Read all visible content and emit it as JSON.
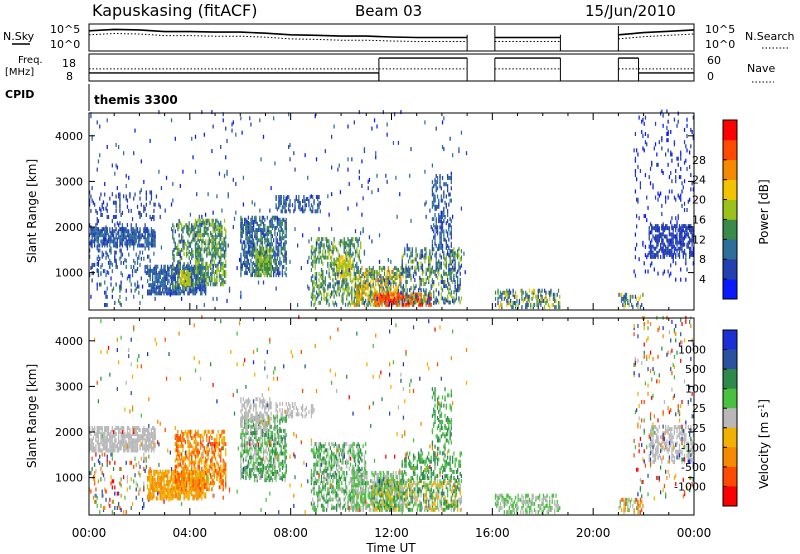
{
  "header": {
    "station": "Kapuskasing (fitACF)",
    "beam": "Beam 03",
    "date": "15/Jun/2010"
  },
  "chart_data": [
    {
      "type": "line",
      "name": "noise-panel",
      "left_label": "N.Sky",
      "right_label": "N.Search",
      "y_ticks_left": [
        "10^5",
        "10^0"
      ],
      "y_ticks_right": [
        "10^5",
        "10^0"
      ],
      "segments_hours": [
        [
          0,
          15.0
        ],
        [
          16.1,
          18.7
        ],
        [
          21.0,
          24.0
        ]
      ],
      "nsky_levels": [
        [
          0,
          0.75
        ],
        [
          1,
          0.8
        ],
        [
          2,
          0.78
        ],
        [
          3,
          0.72
        ],
        [
          4,
          0.72
        ],
        [
          5,
          0.7
        ],
        [
          6,
          0.7
        ],
        [
          7,
          0.66
        ],
        [
          8,
          0.6
        ],
        [
          9,
          0.58
        ],
        [
          10,
          0.55
        ],
        [
          11,
          0.55
        ],
        [
          12,
          0.52
        ],
        [
          13,
          0.5
        ],
        [
          14,
          0.5
        ],
        [
          15,
          0.5
        ],
        [
          16.1,
          0.5
        ],
        [
          17,
          0.5
        ],
        [
          18.7,
          0.5
        ],
        [
          21,
          0.6
        ],
        [
          22,
          0.68
        ],
        [
          23,
          0.73
        ],
        [
          24,
          0.78
        ]
      ]
    },
    {
      "type": "line",
      "name": "frequency-panel",
      "left_label": "Freq.",
      "left_unit": "[MHz]",
      "right_label": "Nave",
      "y_ticks_left": [
        "18",
        "8"
      ],
      "y_ticks_right": [
        "60",
        "0"
      ],
      "freq_steps_hours": [
        [
          0,
          11.5,
          0.3
        ],
        [
          11.5,
          15.0,
          0.85
        ],
        [
          16.1,
          18.7,
          0.85
        ],
        [
          21.0,
          21.8,
          0.85
        ],
        [
          21.8,
          24.0,
          0.3
        ]
      ]
    },
    {
      "type": "table",
      "name": "cpid-panel",
      "label": "CPID",
      "program": "themis 3300"
    },
    {
      "type": "heatmap",
      "name": "power",
      "ylabel": "Slant Range [km]",
      "y_ticks": [
        1000,
        2000,
        3000,
        4000
      ],
      "ylim": [
        180,
        4500
      ],
      "x_ticks": [
        "00:00",
        "04:00",
        "08:00",
        "12:00",
        "16:00",
        "20:00",
        "00:00"
      ],
      "xlim_hours": [
        0,
        24
      ],
      "colorbar_label": "Power [dB]",
      "colorbar_ticks": [
        "4",
        "8",
        "12",
        "16",
        "20",
        "24",
        "28"
      ],
      "colors": [
        "#0a1aff",
        "#233fb0",
        "#2e6e9a",
        "#3a8a4a",
        "#9ac21a",
        "#f2c400",
        "#f58a00",
        "#ff4a00",
        "#ff0000"
      ],
      "regions": [
        {
          "t0": 0.0,
          "t1": 2.6,
          "r0": 1550,
          "r1": 1950,
          "d": 0.6,
          "c": [
            1,
            2
          ]
        },
        {
          "t0": 0.0,
          "t1": 2.8,
          "r0": 1950,
          "r1": 2750,
          "d": 0.08,
          "c": [
            1,
            1
          ]
        },
        {
          "t0": 0.0,
          "t1": 2.4,
          "r0": 900,
          "r1": 1550,
          "d": 0.12,
          "c": [
            1,
            2
          ]
        },
        {
          "t0": 0.3,
          "t1": 2.2,
          "r0": 200,
          "r1": 900,
          "d": 0.08,
          "c": [
            0,
            3
          ]
        },
        {
          "t0": 2.3,
          "t1": 4.6,
          "r0": 500,
          "r1": 1100,
          "d": 0.55,
          "c": [
            1,
            2
          ]
        },
        {
          "t0": 3.3,
          "t1": 4.3,
          "r0": 600,
          "r1": 2050,
          "d": 0.3,
          "c": [
            1,
            4
          ]
        },
        {
          "t0": 4.2,
          "t1": 5.4,
          "r0": 700,
          "r1": 2100,
          "d": 0.45,
          "c": [
            2,
            4
          ]
        },
        {
          "t0": 3.6,
          "t1": 4.0,
          "r0": 700,
          "r1": 1000,
          "d": 0.5,
          "c": [
            4,
            5
          ]
        },
        {
          "t0": 6.0,
          "t1": 7.8,
          "r0": 900,
          "r1": 2200,
          "d": 0.45,
          "c": [
            1,
            3
          ]
        },
        {
          "t0": 6.6,
          "t1": 7.2,
          "r0": 900,
          "r1": 1500,
          "d": 0.6,
          "c": [
            3,
            4
          ]
        },
        {
          "t0": 7.4,
          "t1": 9.2,
          "r0": 2300,
          "r1": 2650,
          "d": 0.3,
          "c": [
            1,
            2
          ]
        },
        {
          "t0": 8.8,
          "t1": 10.8,
          "r0": 250,
          "r1": 1700,
          "d": 0.3,
          "c": [
            2,
            4
          ]
        },
        {
          "t0": 9.8,
          "t1": 10.4,
          "r0": 800,
          "r1": 1300,
          "d": 0.45,
          "c": [
            4,
            5
          ]
        },
        {
          "t0": 10.5,
          "t1": 12.5,
          "r0": 250,
          "r1": 1100,
          "d": 0.45,
          "c": [
            2,
            6
          ]
        },
        {
          "t0": 11.3,
          "t1": 13.6,
          "r0": 250,
          "r1": 500,
          "d": 0.55,
          "c": [
            6,
            8
          ]
        },
        {
          "t0": 12.4,
          "t1": 14.8,
          "r0": 300,
          "r1": 1500,
          "d": 0.3,
          "c": [
            1,
            4
          ]
        },
        {
          "t0": 13.6,
          "t1": 14.4,
          "r0": 1500,
          "r1": 3100,
          "d": 0.25,
          "c": [
            1,
            2
          ]
        },
        {
          "t0": 16.1,
          "t1": 18.7,
          "r0": 200,
          "r1": 600,
          "d": 0.35,
          "c": [
            1,
            5
          ]
        },
        {
          "t0": 21.0,
          "t1": 22.0,
          "r0": 200,
          "r1": 500,
          "d": 0.3,
          "c": [
            1,
            5
          ]
        },
        {
          "t0": 22.2,
          "t1": 24.0,
          "r0": 1300,
          "r1": 2000,
          "d": 0.4,
          "c": [
            1,
            1
          ]
        },
        {
          "t0": 21.6,
          "t1": 24.0,
          "r0": 800,
          "r1": 4500,
          "d": 0.05,
          "c": [
            0,
            1
          ]
        },
        {
          "t0": 0.0,
          "t1": 15.0,
          "r0": 200,
          "r1": 4500,
          "d": 0.012,
          "c": [
            0,
            2
          ]
        }
      ],
      "gaps_hours": [
        [
          15.0,
          16.1
        ],
        [
          18.7,
          21.0
        ]
      ]
    },
    {
      "type": "heatmap",
      "name": "velocity",
      "ylabel": "Slant Range [km]",
      "y_ticks": [
        1000,
        2000,
        3000,
        4000
      ],
      "ylim": [
        180,
        4500
      ],
      "x_ticks": [
        "00:00",
        "04:00",
        "08:00",
        "12:00",
        "16:00",
        "20:00",
        "00:00"
      ],
      "xlim_hours": [
        0,
        24
      ],
      "xlabel": "Time UT",
      "colorbar_label": "Velocity [m s-1]",
      "colorbar_ticks": [
        "1000",
        "500",
        "100",
        "25",
        "-25",
        "-100",
        "-500",
        "-1000"
      ],
      "colors": [
        "#1c2fd6",
        "#2a52a0",
        "#2e8a4a",
        "#48c040",
        "#b8b8b8",
        "#f2b000",
        "#f58a00",
        "#ff4a00",
        "#ff0000"
      ],
      "regions": [
        {
          "t0": 0.0,
          "t1": 2.6,
          "r0": 1550,
          "r1": 2050,
          "d": 0.55,
          "c": [
            4,
            4
          ]
        },
        {
          "t0": 0.0,
          "t1": 2.4,
          "r0": 200,
          "r1": 1500,
          "d": 0.08,
          "c": [
            0,
            8
          ]
        },
        {
          "t0": 2.3,
          "t1": 4.6,
          "r0": 500,
          "r1": 1100,
          "d": 0.6,
          "c": [
            5,
            6
          ]
        },
        {
          "t0": 3.4,
          "t1": 5.4,
          "r0": 700,
          "r1": 2000,
          "d": 0.4,
          "c": [
            5,
            7
          ]
        },
        {
          "t0": 6.0,
          "t1": 7.8,
          "r0": 900,
          "r1": 2300,
          "d": 0.4,
          "c": [
            2,
            4
          ]
        },
        {
          "t0": 6.0,
          "t1": 7.2,
          "r0": 2000,
          "r1": 2700,
          "d": 0.35,
          "c": [
            4,
            4
          ]
        },
        {
          "t0": 7.4,
          "t1": 9.0,
          "r0": 2300,
          "r1": 2600,
          "d": 0.3,
          "c": [
            4,
            4
          ]
        },
        {
          "t0": 8.8,
          "t1": 11.0,
          "r0": 250,
          "r1": 1700,
          "d": 0.3,
          "c": [
            2,
            4
          ]
        },
        {
          "t0": 10.4,
          "t1": 12.5,
          "r0": 250,
          "r1": 1100,
          "d": 0.45,
          "c": [
            3,
            4
          ]
        },
        {
          "t0": 11.2,
          "t1": 14.8,
          "r0": 250,
          "r1": 900,
          "d": 0.45,
          "c": [
            2,
            5
          ]
        },
        {
          "t0": 12.4,
          "t1": 14.8,
          "r0": 900,
          "r1": 1500,
          "d": 0.25,
          "c": [
            2,
            3
          ]
        },
        {
          "t0": 13.6,
          "t1": 14.4,
          "r0": 1500,
          "r1": 2900,
          "d": 0.2,
          "c": [
            2,
            3
          ]
        },
        {
          "t0": 16.1,
          "t1": 18.7,
          "r0": 200,
          "r1": 600,
          "d": 0.35,
          "c": [
            3,
            4
          ]
        },
        {
          "t0": 21.0,
          "t1": 22.0,
          "r0": 200,
          "r1": 500,
          "d": 0.3,
          "c": [
            3,
            7
          ]
        },
        {
          "t0": 22.2,
          "t1": 24.0,
          "r0": 1300,
          "r1": 2100,
          "d": 0.35,
          "c": [
            4,
            4
          ]
        },
        {
          "t0": 21.6,
          "t1": 24.0,
          "r0": 500,
          "r1": 4500,
          "d": 0.05,
          "c": [
            0,
            8
          ]
        },
        {
          "t0": 0.0,
          "t1": 15.0,
          "r0": 200,
          "r1": 4500,
          "d": 0.01,
          "c": [
            0,
            8
          ]
        }
      ],
      "gaps_hours": [
        [
          15.0,
          16.1
        ],
        [
          18.7,
          21.0
        ]
      ]
    }
  ]
}
